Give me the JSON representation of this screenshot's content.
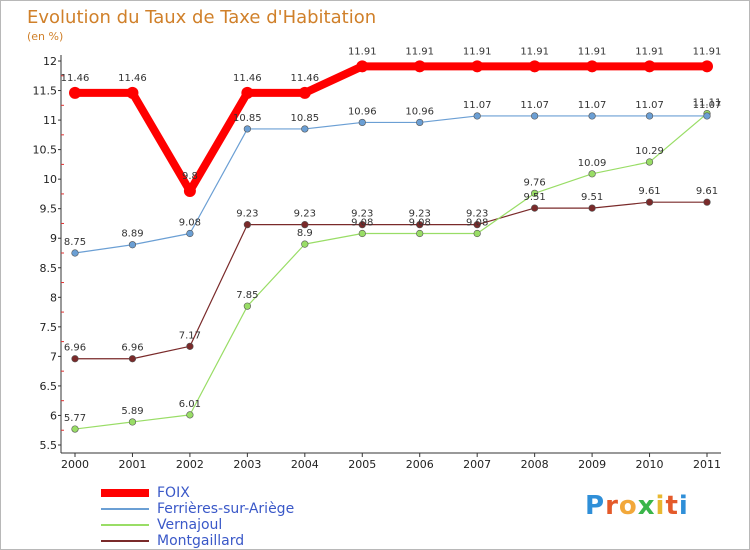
{
  "chart_data": {
    "type": "line",
    "title": "Evolution du Taux de Taxe d'Habitation",
    "subtitle": "(en %)",
    "x": [
      "2000",
      "2001",
      "2002",
      "2003",
      "2004",
      "2005",
      "2006",
      "2007",
      "2008",
      "2009",
      "2010",
      "2011"
    ],
    "ylim": [
      5.5,
      12
    ],
    "yticks": [
      "5.5",
      "6",
      "6.5",
      "7",
      "7.5",
      "8",
      "8.5",
      "9",
      "9.5",
      "10",
      "10.5",
      "11",
      "11.5",
      "12"
    ],
    "grid": false,
    "legend_position": "bottom-left",
    "series": [
      {
        "name": "FOIX",
        "color": "#ff0000",
        "values": [
          11.46,
          11.46,
          9.8,
          11.46,
          11.46,
          11.91,
          11.91,
          11.91,
          11.91,
          11.91,
          11.91,
          11.91
        ],
        "labels": [
          "11.46",
          "11.46",
          "9.8",
          "11.46",
          "11.46",
          "11.91",
          "11.91",
          "11.91",
          "11.91",
          "11.91",
          "11.91",
          "11.91"
        ]
      },
      {
        "name": "Ferrières-sur-Ariège",
        "color": "#6b9fd4",
        "values": [
          8.75,
          8.89,
          9.08,
          10.85,
          10.85,
          10.96,
          10.96,
          11.07,
          11.07,
          11.07,
          11.07,
          11.07
        ],
        "labels": [
          "8.75",
          "8.89",
          "9.08",
          "10.85",
          "10.85",
          "10.96",
          "10.96",
          "11.07",
          "11.07",
          "11.07",
          "11.07",
          "11.07"
        ]
      },
      {
        "name": "Vernajoul",
        "color": "#99dd66",
        "values": [
          5.77,
          5.89,
          6.01,
          7.85,
          8.9,
          9.08,
          9.08,
          9.08,
          9.76,
          10.09,
          10.29,
          11.11
        ],
        "labels": [
          "5.77",
          "5.89",
          "6.01",
          "7.85",
          "8.9",
          "9.08",
          "9.08",
          "9.08",
          "9.76",
          "10.09",
          "10.29",
          "11.11"
        ]
      },
      {
        "name": "Montgaillard",
        "color": "#7a2a2a",
        "values": [
          6.96,
          6.96,
          7.17,
          9.23,
          9.23,
          9.23,
          9.23,
          9.23,
          9.51,
          9.51,
          9.61,
          9.61
        ],
        "labels": [
          "6.96",
          "6.96",
          "7.17",
          "9.23",
          "9.23",
          "9.23",
          "9.23",
          "9.23",
          "9.51",
          "9.51",
          "9.61",
          "9.61"
        ]
      }
    ]
  },
  "logo": {
    "chars": [
      "P",
      "r",
      "o",
      "x",
      "i",
      "t",
      "i"
    ],
    "colors": [
      "#2f8fd8",
      "#e45a2a",
      "#f2a83a",
      "#3ab54a",
      "#e8b830",
      "#e45a2a",
      "#2f8fd8"
    ]
  }
}
